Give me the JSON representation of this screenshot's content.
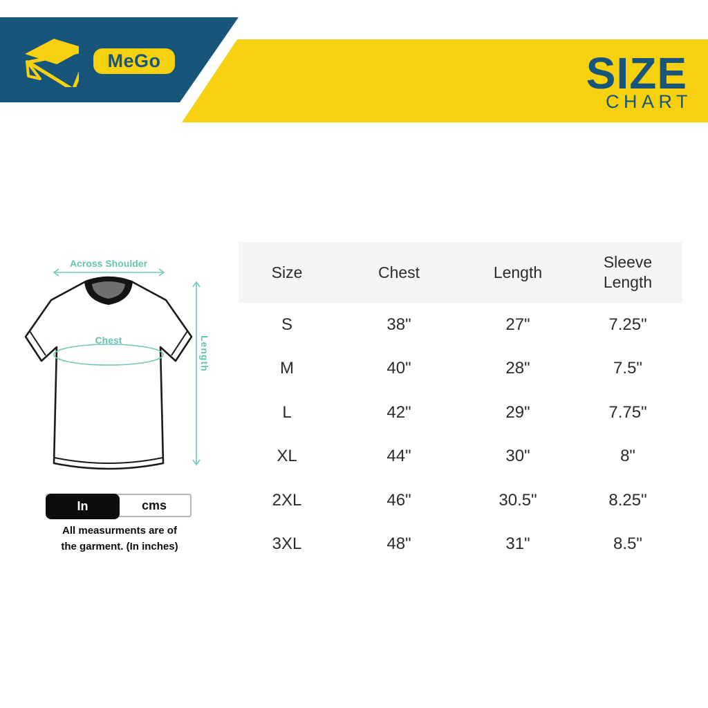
{
  "brand": {
    "name": "MeGo",
    "logo_icon": "envelope-icon"
  },
  "header": {
    "title_main": "SIZE",
    "title_sub": "CHART"
  },
  "diagram": {
    "across_shoulder_label": "Across Shoulder",
    "chest_label": "Chest",
    "length_label": "Length"
  },
  "unit_toggle": {
    "in_label": "In",
    "cms_label": "cms",
    "selected": "In"
  },
  "note": {
    "line1": "All measurments are of",
    "line2": "the garment. (In inches)"
  },
  "size_table": {
    "columns": [
      "Size",
      "Chest",
      "Length",
      "Sleeve Length"
    ],
    "rows": [
      [
        "S",
        "38\"",
        "27\"",
        "7.25\""
      ],
      [
        "M",
        "40\"",
        "28\"",
        "7.5\""
      ],
      [
        "L",
        "42\"",
        "29\"",
        "7.75\""
      ],
      [
        "XL",
        "44\"",
        "30\"",
        "8\""
      ],
      [
        "2XL",
        "46\"",
        "30.5\"",
        "8.25\""
      ],
      [
        "3XL",
        "48\"",
        "31\"",
        "8.5\""
      ]
    ]
  },
  "chart_data": {
    "type": "table",
    "title": "SIZE CHART",
    "columns": [
      "Size",
      "Chest",
      "Length",
      "Sleeve Length"
    ],
    "unit": "inches",
    "rows": [
      {
        "size": "S",
        "chest_in": 38,
        "length_in": 27,
        "sleeve_length_in": 7.25
      },
      {
        "size": "M",
        "chest_in": 40,
        "length_in": 28,
        "sleeve_length_in": 7.5
      },
      {
        "size": "L",
        "chest_in": 42,
        "length_in": 29,
        "sleeve_length_in": 7.75
      },
      {
        "size": "XL",
        "chest_in": 44,
        "length_in": 30,
        "sleeve_length_in": 8
      },
      {
        "size": "2XL",
        "chest_in": 46,
        "length_in": 30.5,
        "sleeve_length_in": 8.25
      },
      {
        "size": "3XL",
        "chest_in": 48,
        "length_in": 31,
        "sleeve_length_in": 8.5
      }
    ]
  },
  "colors": {
    "brand_blue": "#17557A",
    "brand_yellow": "#F5D110",
    "teal": "#66C3B1",
    "header_bg": "#F5F5F5",
    "table_text": "#2B2B2B"
  }
}
